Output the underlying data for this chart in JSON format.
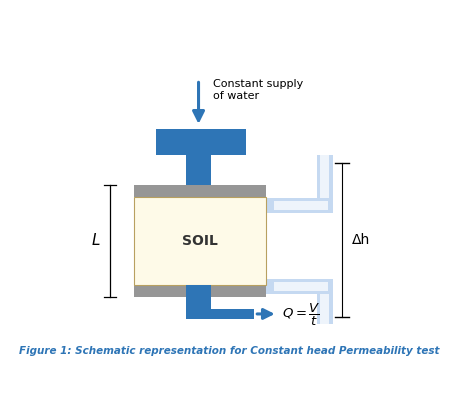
{
  "figure_title": "Figure 1: Schematic representation for Constant head Permeability test",
  "title_color": "#2E75B6",
  "title_fontsize": 7.5,
  "blue_color": "#2E75B6",
  "light_blue_color": "#C5D9F1",
  "light_blue_inner": "#EEF4FB",
  "gray_color": "#969696",
  "soil_color": "#FEFAE8",
  "background": "#FFFFFF",
  "label_L": "L",
  "label_Dh": "Δh",
  "label_SOIL": "SOIL",
  "constant_supply_text": "Constant supply\nof water"
}
